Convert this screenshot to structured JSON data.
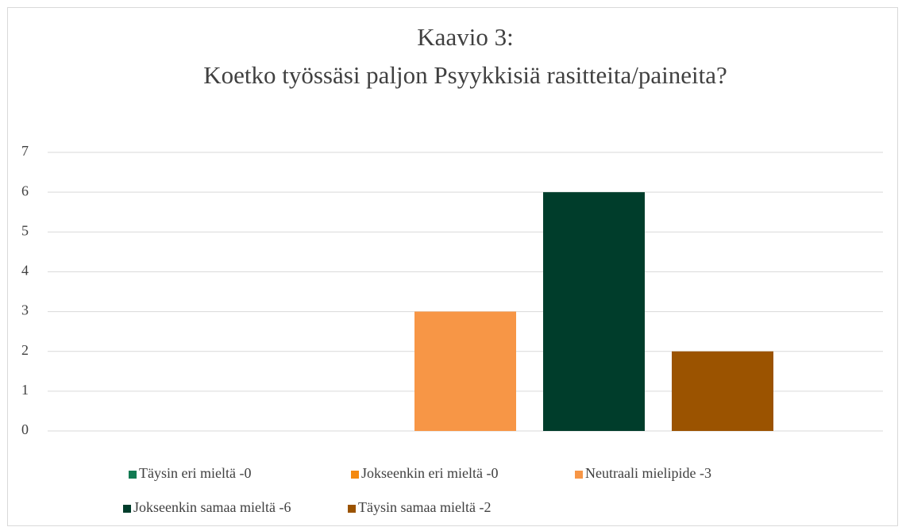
{
  "chart_data": {
    "type": "bar",
    "title": [
      "Kaavio 3:",
      "Koetko työssäsi paljon Psyykkisiä rasitteita/paineita?"
    ],
    "categories": [
      null
    ],
    "series": [
      {
        "name": "Täysin eri mieltä -0",
        "color": "#117a52",
        "values": [
          0
        ]
      },
      {
        "name": "Jokseenkin eri mieltä -0",
        "color": "#f4890f",
        "values": [
          0
        ]
      },
      {
        "name": "Neutraali mielipide -3",
        "color": "#f79646",
        "values": [
          3
        ]
      },
      {
        "name": "Jokseenkin samaa mieltä -6",
        "color": "#003d2b",
        "values": [
          6
        ]
      },
      {
        "name": "Täysin samaa mieltä -2",
        "color": "#9b5300",
        "values": [
          2
        ]
      }
    ],
    "ylim": [
      0,
      7
    ],
    "yticks": [
      0,
      1,
      2,
      3,
      4,
      5,
      6,
      7
    ],
    "grid": true,
    "legend": "bottom"
  }
}
